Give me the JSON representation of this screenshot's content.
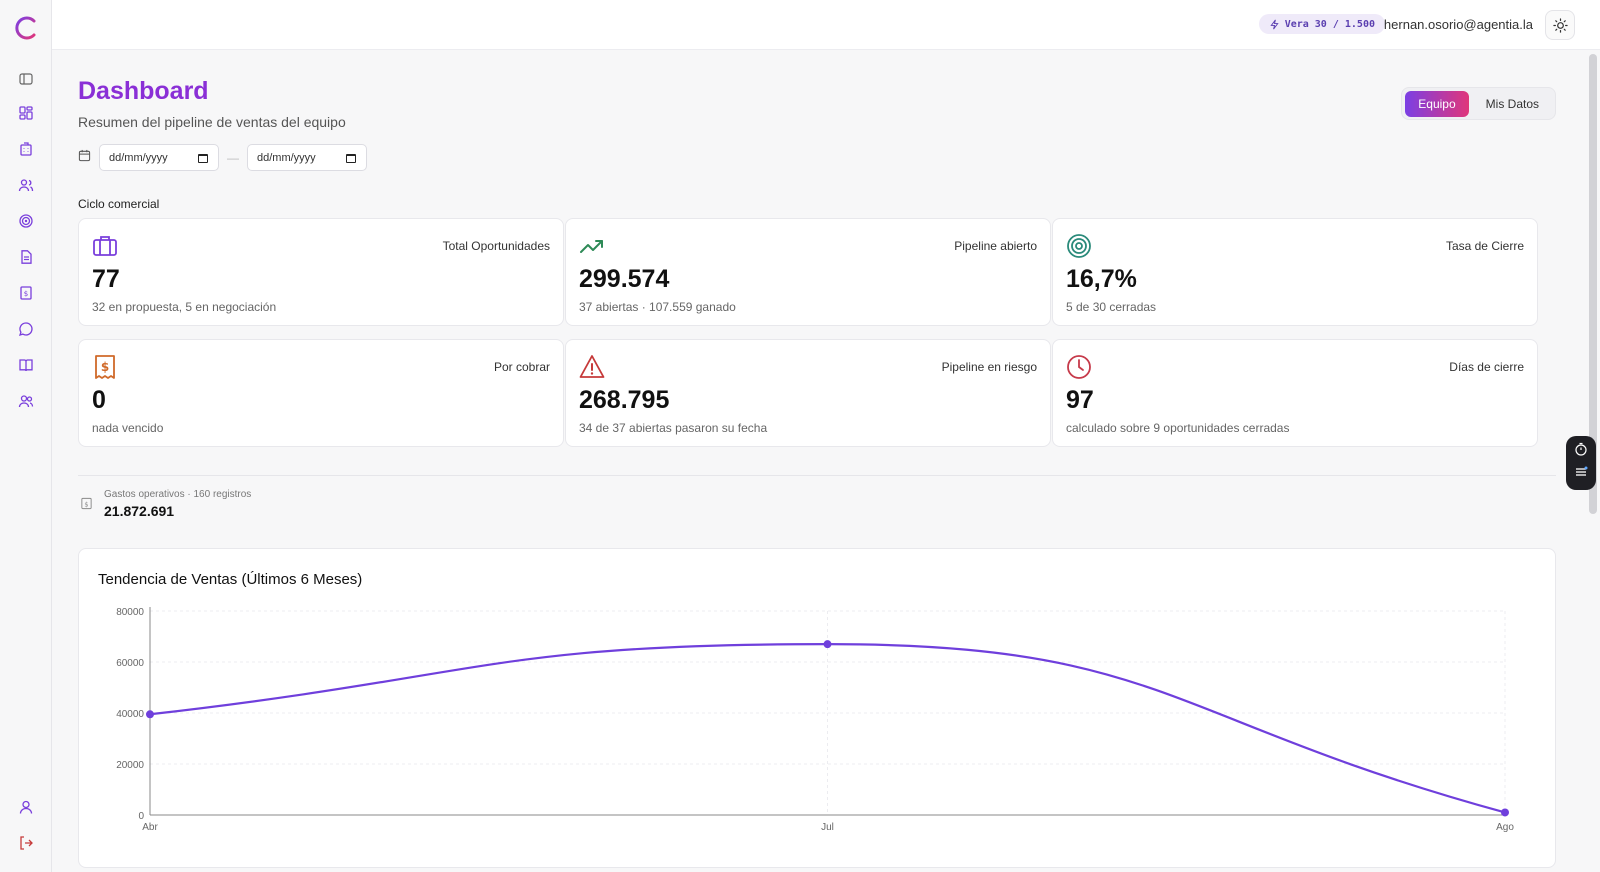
{
  "topbar": {
    "credits": "Vera 30 / 1.500",
    "user_email": "hernan.osorio@agentia.la"
  },
  "page": {
    "title": "Dashboard",
    "subtitle": "Resumen del pipeline de ventas del equipo"
  },
  "view_toggle": {
    "options": [
      "Equipo",
      "Mis Datos"
    ],
    "selected": "Equipo"
  },
  "date_filter": {
    "from_placeholder": "dd/mm/yyyy",
    "to_placeholder": "dd/mm/yyyy",
    "separator": "—"
  },
  "section_label": "Ciclo comercial",
  "cards": [
    {
      "label": "Total Oportunidades",
      "value": "77",
      "sub": "32 en propuesta, 5 en negociación",
      "icon": "briefcase-icon",
      "color": "#7a3fdc"
    },
    {
      "label": "Pipeline abierto",
      "value": "299.574",
      "sub": "37 abiertas · 107.559 ganado",
      "icon": "trending-up-icon",
      "color": "#2e8a57"
    },
    {
      "label": "Tasa de Cierre",
      "value": "16,7%",
      "sub": "5 de 30 cerradas",
      "icon": "target-icon",
      "color": "#2a8a7a"
    },
    {
      "label": "Por cobrar",
      "value": "0",
      "sub": "nada vencido",
      "icon": "receipt-icon",
      "color": "#d06a2a"
    },
    {
      "label": "Pipeline en riesgo",
      "value": "268.795",
      "sub": "34 de 37 abiertas pasaron su fecha",
      "icon": "warning-icon",
      "color": "#c63a3a"
    },
    {
      "label": "Días de cierre",
      "value": "97",
      "sub": "calculado sobre 9 oportunidades cerradas",
      "icon": "clock-icon",
      "color": "#c63a4a"
    }
  ],
  "expenses": {
    "label": "Gastos operativos · 160 registros",
    "value": "21.872.691"
  },
  "chart_data": {
    "type": "line",
    "title": "Tendencia de Ventas (Últimos 6 Meses)",
    "x": [
      "Abr",
      "Jul",
      "Ago"
    ],
    "values": [
      39500,
      67000,
      1000
    ],
    "ylim": [
      0,
      80000
    ],
    "yticks": [
      0,
      20000,
      40000,
      60000,
      80000
    ],
    "grid": true,
    "color": "#6f3fdc"
  }
}
